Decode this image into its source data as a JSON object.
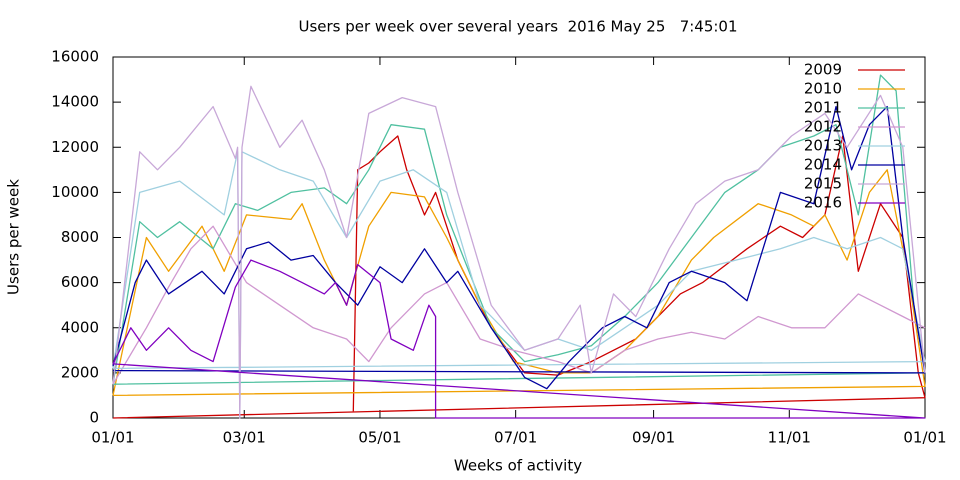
{
  "chart_data": {
    "type": "line",
    "title": "Users per week over several years  2016 May 25   7:45:01",
    "x_label": "Weeks of activity",
    "y_label": "Users per week",
    "xlim": [
      0,
      365
    ],
    "xticks": [
      {
        "value": 0,
        "label": "01/01"
      },
      {
        "value": 59,
        "label": "03/01"
      },
      {
        "value": 120,
        "label": "05/01"
      },
      {
        "value": 181,
        "label": "07/01"
      },
      {
        "value": 243,
        "label": "09/01"
      },
      {
        "value": 304,
        "label": "11/01"
      },
      {
        "value": 365,
        "label": "01/01"
      }
    ],
    "ylim": [
      0,
      16000
    ],
    "yticks": [
      0,
      2000,
      4000,
      6000,
      8000,
      10000,
      12000,
      14000,
      16000
    ],
    "legend": "top right",
    "series": [
      {
        "name": "2009",
        "color": "#cc0000",
        "x": [
          108,
          110,
          115,
          120,
          128,
          132,
          140,
          145,
          155,
          170,
          185,
          200,
          215,
          235,
          255,
          265,
          285,
          300,
          310,
          320,
          328,
          335,
          345,
          355,
          362,
          365,
          0
        ],
        "values": [
          300,
          11000,
          11300,
          11800,
          12500,
          11000,
          9000,
          10000,
          7000,
          4000,
          2000,
          1900,
          2500,
          3500,
          5500,
          6000,
          7500,
          8500,
          8000,
          9000,
          12500,
          6500,
          9500,
          8000,
          2000,
          900,
          0
        ]
      },
      {
        "name": "2010",
        "color": "#f0a000",
        "x": [
          0,
          15,
          25,
          40,
          50,
          60,
          80,
          85,
          95,
          105,
          115,
          125,
          140,
          150,
          165,
          180,
          200,
          215,
          230,
          245,
          260,
          270,
          290,
          305,
          315,
          320,
          330,
          340,
          348,
          358,
          365,
          0
        ],
        "values": [
          1000,
          8000,
          6500,
          8500,
          6500,
          9000,
          8800,
          9500,
          7000,
          5000,
          8500,
          10000,
          9800,
          8000,
          5000,
          2500,
          2000,
          2000,
          3000,
          4500,
          7000,
          8000,
          9500,
          9000,
          8500,
          9000,
          7000,
          10000,
          11000,
          6000,
          1400,
          1000
        ]
      },
      {
        "name": "2011",
        "color": "#50c0a0",
        "x": [
          0,
          12,
          20,
          30,
          45,
          55,
          65,
          80,
          95,
          105,
          115,
          125,
          140,
          150,
          170,
          185,
          200,
          215,
          230,
          245,
          260,
          275,
          290,
          300,
          315,
          325,
          335,
          345,
          352,
          360,
          365,
          0
        ],
        "values": [
          1500,
          8700,
          8000,
          8700,
          7500,
          9500,
          9200,
          10000,
          10200,
          9500,
          11000,
          13000,
          12800,
          9000,
          4000,
          2500,
          2800,
          3200,
          4500,
          6000,
          8000,
          10000,
          11000,
          12000,
          12500,
          13000,
          9000,
          15200,
          14500,
          5000,
          2000,
          1500
        ]
      },
      {
        "name": "2012",
        "color": "#d098d0",
        "x": [
          0,
          15,
          25,
          35,
          45,
          60,
          75,
          90,
          105,
          115,
          125,
          140,
          150,
          165,
          180,
          200,
          215,
          230,
          245,
          260,
          275,
          290,
          305,
          320,
          335,
          345,
          355,
          365
        ],
        "values": [
          1500,
          4000,
          5800,
          7500,
          8500,
          6000,
          5000,
          4000,
          3500,
          2500,
          4000,
          5500,
          6000,
          3500,
          3000,
          2500,
          2000,
          3000,
          3500,
          3800,
          3500,
          4500,
          4000,
          4000,
          5500,
          5000,
          4500,
          4000
        ]
      },
      {
        "name": "2013",
        "color": "#a0d0e0",
        "x": [
          0,
          12,
          30,
          50,
          56,
          57,
          58,
          75,
          90,
          105,
          120,
          135,
          150,
          165,
          185,
          200,
          215,
          230,
          245,
          260,
          280,
          300,
          315,
          330,
          345,
          355,
          365,
          0
        ],
        "values": [
          2200,
          10000,
          10500,
          9000,
          11800,
          0,
          11800,
          11000,
          10500,
          8000,
          10500,
          11000,
          10000,
          5000,
          3000,
          3500,
          3000,
          4000,
          5000,
          6500,
          7000,
          7500,
          8000,
          7500,
          8000,
          7500,
          2500,
          2200
        ]
      },
      {
        "name": "2014",
        "color": "#0000a0",
        "x": [
          0,
          10,
          15,
          25,
          40,
          50,
          60,
          70,
          80,
          90,
          100,
          110,
          120,
          130,
          140,
          150,
          155,
          170,
          185,
          195,
          205,
          220,
          230,
          240,
          250,
          260,
          275,
          285,
          300,
          315,
          325,
          332,
          340,
          348,
          355,
          365,
          0
        ],
        "values": [
          2300,
          6000,
          7000,
          5500,
          6500,
          5500,
          7500,
          7800,
          7000,
          7200,
          6000,
          5000,
          6700,
          6000,
          7500,
          6000,
          6500,
          4000,
          1800,
          1300,
          2500,
          4000,
          4500,
          4000,
          6000,
          6500,
          6000,
          5200,
          10000,
          9500,
          13800,
          11000,
          13000,
          13800,
          8000,
          2000,
          2100
        ]
      },
      {
        "name": "2015",
        "color": "#c8a8d8",
        "x": [
          0,
          12,
          20,
          30,
          45,
          55,
          56,
          57,
          58,
          62,
          75,
          85,
          95,
          105,
          115,
          130,
          145,
          155,
          170,
          185,
          200,
          210,
          215,
          225,
          235,
          250,
          262,
          275,
          290,
          305,
          320,
          330,
          345,
          355,
          362,
          365
        ],
        "values": [
          1500,
          11800,
          11000,
          12000,
          13800,
          11500,
          12000,
          0,
          12000,
          14700,
          12000,
          13200,
          11000,
          8000,
          13500,
          14200,
          13800,
          10000,
          5000,
          3000,
          3500,
          5000,
          2000,
          5500,
          4500,
          7500,
          9500,
          10500,
          11000,
          12500,
          13500,
          12000,
          14300,
          12000,
          5000,
          2000
        ]
      },
      {
        "name": "2016",
        "color": "#8000c0",
        "x": [
          0,
          8,
          15,
          25,
          35,
          45,
          55,
          62,
          75,
          85,
          95,
          100,
          105,
          110,
          120,
          125,
          135,
          142,
          145,
          145,
          365,
          0
        ],
        "values": [
          2400,
          4000,
          3000,
          4000,
          3000,
          2500,
          5800,
          7000,
          6500,
          6000,
          5500,
          6000,
          5000,
          6800,
          6000,
          3500,
          3000,
          5000,
          4500,
          0,
          0,
          2400
        ]
      }
    ]
  }
}
